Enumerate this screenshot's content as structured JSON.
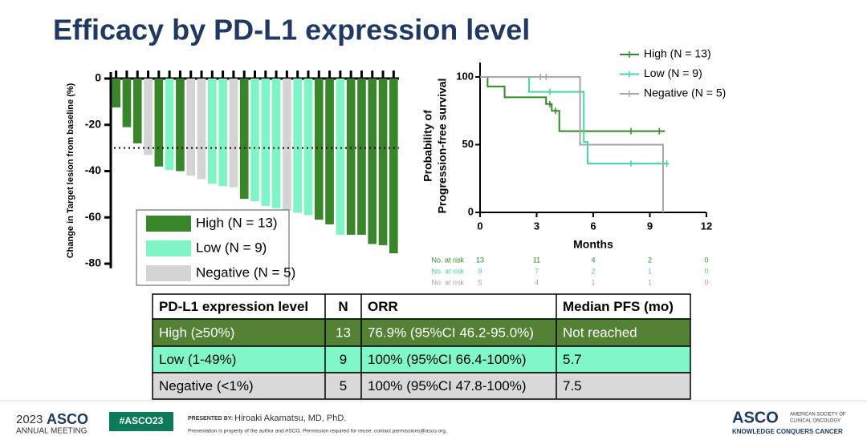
{
  "title": "Efficacy by PD-L1 expression level",
  "chart_data": [
    {
      "type": "bar",
      "ylabel": "Change in Target lesion from baseline (%)",
      "categories": [
        null,
        null,
        null,
        null,
        null,
        null,
        null,
        null,
        null,
        null,
        null,
        null,
        null,
        null,
        null,
        null,
        null,
        null,
        null,
        null,
        null,
        null,
        null,
        null,
        null,
        null,
        null
      ],
      "series": [
        {
          "name": "High (N = 13)",
          "color": "#38852a",
          "values": [
            -12.5,
            -21,
            -28,
            null,
            -38,
            null,
            -40,
            null,
            null,
            null,
            null,
            null,
            -52,
            null,
            null,
            null,
            null,
            null,
            null,
            -61,
            -63,
            null,
            -67.5,
            -67.5,
            -71.5,
            -72,
            -75.5
          ]
        },
        {
          "name": "Low (N = 9)",
          "color": "#7ff5c6",
          "values": [
            null,
            null,
            null,
            null,
            null,
            -39.5,
            null,
            null,
            null,
            -45.5,
            -46.5,
            null,
            null,
            -53,
            -55,
            -56,
            null,
            -58,
            -59,
            null,
            null,
            -67.5,
            null,
            null,
            null,
            null,
            null
          ]
        },
        {
          "name": "Negative (N = 5)",
          "color": "#d4d4d4",
          "values": [
            null,
            null,
            null,
            -33,
            null,
            null,
            null,
            -42,
            -43.5,
            null,
            null,
            -47,
            null,
            null,
            null,
            null,
            -57,
            null,
            null,
            null,
            null,
            null,
            null,
            null,
            null,
            null,
            null
          ]
        }
      ],
      "reference_line": -30,
      "ylim": [
        -82,
        0
      ],
      "yticks": [
        0,
        -20,
        -40,
        -60,
        -80
      ]
    },
    {
      "type": "line",
      "xlabel": "Months",
      "ylabel": [
        "Probability of",
        "Progression-free survival"
      ],
      "series": [
        {
          "name": "High (N = 13)",
          "color": "#2e8b22",
          "x": [
            0,
            0.4,
            0.4,
            1.3,
            1.3,
            3.5,
            3.5,
            3.8,
            3.8,
            4.2,
            4.2,
            9.8
          ],
          "values": [
            100,
            100,
            93,
            93,
            85,
            85,
            80,
            80,
            75,
            75,
            60,
            60
          ],
          "censor_x": [
            3.7,
            4.0,
            5.5,
            8.0,
            9.5
          ],
          "censor_y": [
            80,
            75,
            60,
            60,
            60
          ]
        },
        {
          "name": "Low (N = 9)",
          "color": "#3fd9a0",
          "x": [
            0,
            2.6,
            2.6,
            5.5,
            5.5,
            5.7,
            5.7,
            10
          ],
          "values": [
            100,
            100,
            89,
            89,
            52,
            52,
            36,
            36
          ],
          "censor_x": [
            3.7,
            8.0,
            9.9
          ],
          "censor_y": [
            89,
            36,
            36
          ]
        },
        {
          "name": "Negative (N = 5)",
          "color": "#a6a6a6",
          "x": [
            0,
            5.3,
            5.3,
            9.7,
            9.7
          ],
          "values": [
            100,
            100,
            50,
            50,
            0
          ],
          "censor_x": [
            3.2,
            3.5
          ],
          "censor_y": [
            100,
            100
          ]
        }
      ],
      "risk_table": {
        "label": "No. at risk",
        "rows": [
          [
            13,
            11,
            4,
            2,
            0
          ],
          [
            9,
            7,
            2,
            1,
            0
          ],
          [
            5,
            4,
            1,
            1,
            0
          ]
        ]
      },
      "xlim": [
        0,
        12
      ],
      "xticks": [
        0,
        3,
        6,
        9,
        12
      ],
      "ylim": [
        0,
        100
      ],
      "yticks": [
        0,
        50,
        100
      ]
    }
  ],
  "table": {
    "header": [
      "PD-L1 expression level",
      "N",
      "ORR",
      "Median PFS (mo)"
    ],
    "rows": [
      [
        "High (≥50%)",
        "13",
        "76.9% (95%CI 46.2-95.0%)",
        "Not reached"
      ],
      [
        "Low (1-49%)",
        "9",
        "100% (95%CI 66.4-100%)",
        "5.7"
      ],
      [
        "Negative (<1%)",
        "5",
        "100% (95%CI 47.8-100%)",
        "7.5"
      ]
    ]
  },
  "footer": {
    "year": "2023",
    "brand": "ASCO",
    "meeting": "ANNUAL MEETING",
    "hashtag": "#ASCO23",
    "presented_by": "PRESENTED BY:",
    "presenter": "Hiroaki Akamatsu, MD, PhD.",
    "notice": "Presentation is property of the author and ASCO. Permission required for reuse; contact permissions@asco.org.",
    "society_line1": "AMERICAN SOCIETY OF",
    "society_line2": "CLINICAL ONCOLOGY",
    "tagline": "KNOWLEDGE CONQUERS CANCER"
  }
}
